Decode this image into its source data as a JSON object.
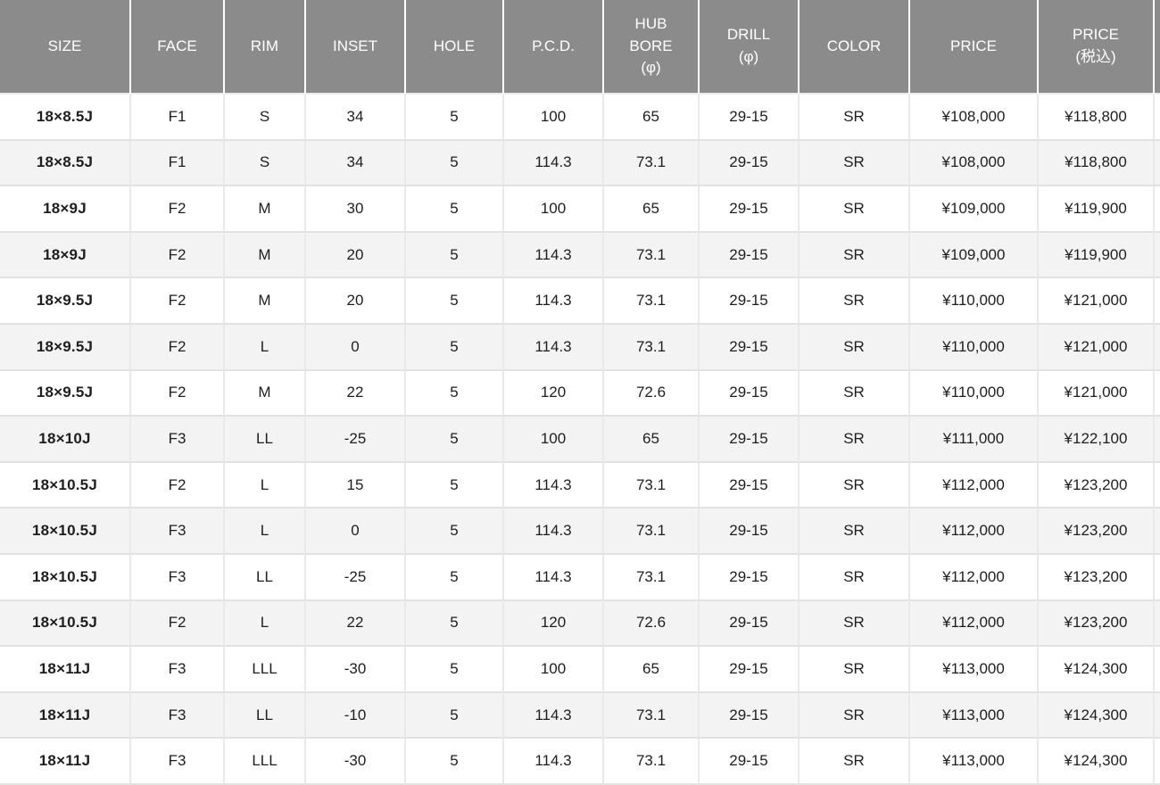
{
  "theme": {
    "header_bg": "#8b8b8b",
    "header_text": "#ffffff",
    "text": "#1e1e1e",
    "stripe_bg": "#f3f3f3",
    "border_h": "#e2e2e2",
    "border_v": "#e9e9e9"
  },
  "table": {
    "column_keys": [
      "size",
      "face",
      "rim",
      "inset",
      "hole",
      "pcd",
      "hub_bore",
      "drill",
      "color",
      "price",
      "price_tax_included"
    ],
    "headers": [
      {
        "key": "size",
        "label": "SIZE"
      },
      {
        "key": "face",
        "label": "FACE"
      },
      {
        "key": "rim",
        "label": "RIM"
      },
      {
        "key": "inset",
        "label": "INSET"
      },
      {
        "key": "hole",
        "label": "HOLE"
      },
      {
        "key": "pcd",
        "label": "P.C.D."
      },
      {
        "key": "hub_bore",
        "label": "HUB\nBORE\n(φ)"
      },
      {
        "key": "drill",
        "label": "DRILL\n(φ)"
      },
      {
        "key": "color",
        "label": "COLOR"
      },
      {
        "key": "price",
        "label": "PRICE"
      },
      {
        "key": "price_tax_included",
        "label": "PRICE\n(税込)"
      }
    ],
    "rows": [
      [
        "18×8.5J",
        "F1",
        "S",
        "34",
        "5",
        "100",
        "65",
        "29-15",
        "SR",
        "¥108,000",
        "¥118,800"
      ],
      [
        "18×8.5J",
        "F1",
        "S",
        "34",
        "5",
        "114.3",
        "73.1",
        "29-15",
        "SR",
        "¥108,000",
        "¥118,800"
      ],
      [
        "18×9J",
        "F2",
        "M",
        "30",
        "5",
        "100",
        "65",
        "29-15",
        "SR",
        "¥109,000",
        "¥119,900"
      ],
      [
        "18×9J",
        "F2",
        "M",
        "20",
        "5",
        "114.3",
        "73.1",
        "29-15",
        "SR",
        "¥109,000",
        "¥119,900"
      ],
      [
        "18×9.5J",
        "F2",
        "M",
        "20",
        "5",
        "114.3",
        "73.1",
        "29-15",
        "SR",
        "¥110,000",
        "¥121,000"
      ],
      [
        "18×9.5J",
        "F2",
        "L",
        "0",
        "5",
        "114.3",
        "73.1",
        "29-15",
        "SR",
        "¥110,000",
        "¥121,000"
      ],
      [
        "18×9.5J",
        "F2",
        "M",
        "22",
        "5",
        "120",
        "72.6",
        "29-15",
        "SR",
        "¥110,000",
        "¥121,000"
      ],
      [
        "18×10J",
        "F3",
        "LL",
        "-25",
        "5",
        "100",
        "65",
        "29-15",
        "SR",
        "¥111,000",
        "¥122,100"
      ],
      [
        "18×10.5J",
        "F2",
        "L",
        "15",
        "5",
        "114.3",
        "73.1",
        "29-15",
        "SR",
        "¥112,000",
        "¥123,200"
      ],
      [
        "18×10.5J",
        "F3",
        "L",
        "0",
        "5",
        "114.3",
        "73.1",
        "29-15",
        "SR",
        "¥112,000",
        "¥123,200"
      ],
      [
        "18×10.5J",
        "F3",
        "LL",
        "-25",
        "5",
        "114.3",
        "73.1",
        "29-15",
        "SR",
        "¥112,000",
        "¥123,200"
      ],
      [
        "18×10.5J",
        "F2",
        "L",
        "22",
        "5",
        "120",
        "72.6",
        "29-15",
        "SR",
        "¥112,000",
        "¥123,200"
      ],
      [
        "18×11J",
        "F3",
        "LLL",
        "-30",
        "5",
        "100",
        "65",
        "29-15",
        "SR",
        "¥113,000",
        "¥124,300"
      ],
      [
        "18×11J",
        "F3",
        "LL",
        "-10",
        "5",
        "114.3",
        "73.1",
        "29-15",
        "SR",
        "¥113,000",
        "¥124,300"
      ],
      [
        "18×11J",
        "F3",
        "LLL",
        "-30",
        "5",
        "114.3",
        "73.1",
        "29-15",
        "SR",
        "¥113,000",
        "¥124,300"
      ]
    ]
  }
}
